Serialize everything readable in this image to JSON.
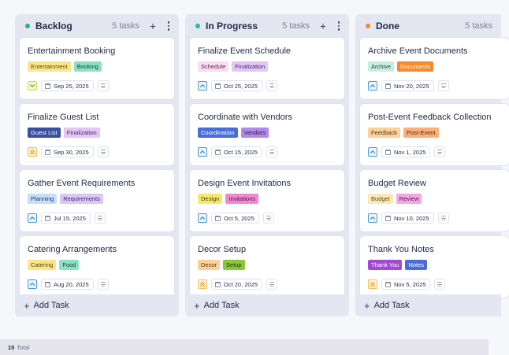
{
  "columns": [
    {
      "title": "Backlog",
      "count": "5 tasks",
      "dot_color": "#26b388",
      "add_task_label": "Add Task",
      "cards": [
        {
          "title": "Entertainment Booking",
          "priority": "low",
          "date": "Sep 25, 2025",
          "tags": [
            {
              "label": "Entertainment",
              "bg": "#fbe48a",
              "fg": "#5a4a10"
            },
            {
              "label": "Booking",
              "bg": "#8ee0c4",
              "fg": "#0f4a38"
            }
          ]
        },
        {
          "title": "Finalize Guest List",
          "priority": "urgent",
          "date": "Sep 30, 2025",
          "tags": [
            {
              "label": "Guest List",
              "bg": "#3a4fa0",
              "fg": "#ffffff"
            },
            {
              "label": "Finalization",
              "bg": "#e2c6f4",
              "fg": "#4a2a66"
            }
          ]
        },
        {
          "title": "Gather Event Requirements",
          "priority": "medium",
          "date": "Jul 15, 2025",
          "tags": [
            {
              "label": "Planning",
              "bg": "#c6def6",
              "fg": "#1f3a5c"
            },
            {
              "label": "Requirements",
              "bg": "#dcc6f6",
              "fg": "#3f2a66"
            }
          ]
        },
        {
          "title": "Catering Arrangements",
          "priority": "medium",
          "date": "Aug 20, 2025",
          "tags": [
            {
              "label": "Catering",
              "bg": "#fbe48a",
              "fg": "#5a4a10"
            },
            {
              "label": "Food",
              "bg": "#8ee0c4",
              "fg": "#0f4a38"
            }
          ]
        }
      ]
    },
    {
      "title": "In Progress",
      "count": "5 tasks",
      "dot_color": "#2cb8a8",
      "add_task_label": "Add Task",
      "cards": [
        {
          "title": "Finalize Event Schedule",
          "priority": "medium",
          "date": "Oct 25, 2025",
          "tags": [
            {
              "label": "Schedule",
              "bg": "#fadcf0",
              "fg": "#5a2a4a"
            },
            {
              "label": "Finalization",
              "bg": "#e2c6f4",
              "fg": "#4a2a66"
            }
          ]
        },
        {
          "title": "Coordinate with Vendors",
          "priority": "medium",
          "date": "Oct 15, 2025",
          "tags": [
            {
              "label": "Coordination",
              "bg": "#4a6ed8",
              "fg": "#ffffff"
            },
            {
              "label": "Vendors",
              "bg": "#b08ae6",
              "fg": "#2a1a4a"
            }
          ]
        },
        {
          "title": "Design Event Invitations",
          "priority": "medium",
          "date": "Oct 5, 2025",
          "tags": [
            {
              "label": "Design",
              "bg": "#f6e86a",
              "fg": "#4a4210"
            },
            {
              "label": "Invitations",
              "bg": "#f08ad0",
              "fg": "#4a1a3a"
            }
          ]
        },
        {
          "title": "Decor Setup",
          "priority": "urgent",
          "date": "Oct 20, 2025",
          "tags": [
            {
              "label": "Decor",
              "bg": "#fbd09a",
              "fg": "#5a3a10"
            },
            {
              "label": "Setup",
              "bg": "#8ac83a",
              "fg": "#1a3a0a"
            }
          ]
        }
      ]
    },
    {
      "title": "Done",
      "count": "5 tasks",
      "dot_color": "#f08a24",
      "add_task_label": "Add Task",
      "cards": [
        {
          "title": "Archive Event Documents",
          "priority": "medium",
          "date": "Nov 20, 2025",
          "tags": [
            {
              "label": "Archive",
              "bg": "#c6eee0",
              "fg": "#1f4a3c"
            },
            {
              "label": "Documents",
              "bg": "#f88a2a",
              "fg": "#ffffff"
            }
          ]
        },
        {
          "title": "Post-Event Feedback Collection",
          "priority": "medium",
          "date": "Nov 1, 2025",
          "tags": [
            {
              "label": "Feedback",
              "bg": "#fbd09a",
              "fg": "#5a3a10"
            },
            {
              "label": "Post-Event",
              "bg": "#f8b07a",
              "fg": "#5a2a10"
            }
          ]
        },
        {
          "title": "Budget Review",
          "priority": "medium",
          "date": "Nov 10, 2025",
          "tags": [
            {
              "label": "Budget",
              "bg": "#fbe8b6",
              "fg": "#5a4a10"
            },
            {
              "label": "Review",
              "bg": "#f6a6e6",
              "fg": "#4a1a3a"
            }
          ]
        },
        {
          "title": "Thank You Notes",
          "priority": "urgent",
          "date": "Nov 5, 2025",
          "tags": [
            {
              "label": "Thank You",
              "bg": "#a04ad0",
              "fg": "#ffffff"
            },
            {
              "label": "Notes",
              "bg": "#4a6ed8",
              "fg": "#ffffff"
            }
          ]
        }
      ]
    }
  ],
  "footer": {
    "total_count": "15",
    "total_label": "Total"
  },
  "priority_colors": {
    "low": {
      "bg": "#f2f8c8",
      "border": "#c6d86a",
      "icon": "#8aa020",
      "icon_name": "chevron-down-icon"
    },
    "medium": {
      "bg": "#eaf4fc",
      "border": "#4a9ad8",
      "icon": "#3a86c8",
      "icon_name": "chevron-up-icon"
    },
    "urgent": {
      "bg": "#fdf2da",
      "border": "#f0c060",
      "icon": "#e0a020",
      "icon_name": "double-chevron-up-icon"
    }
  }
}
